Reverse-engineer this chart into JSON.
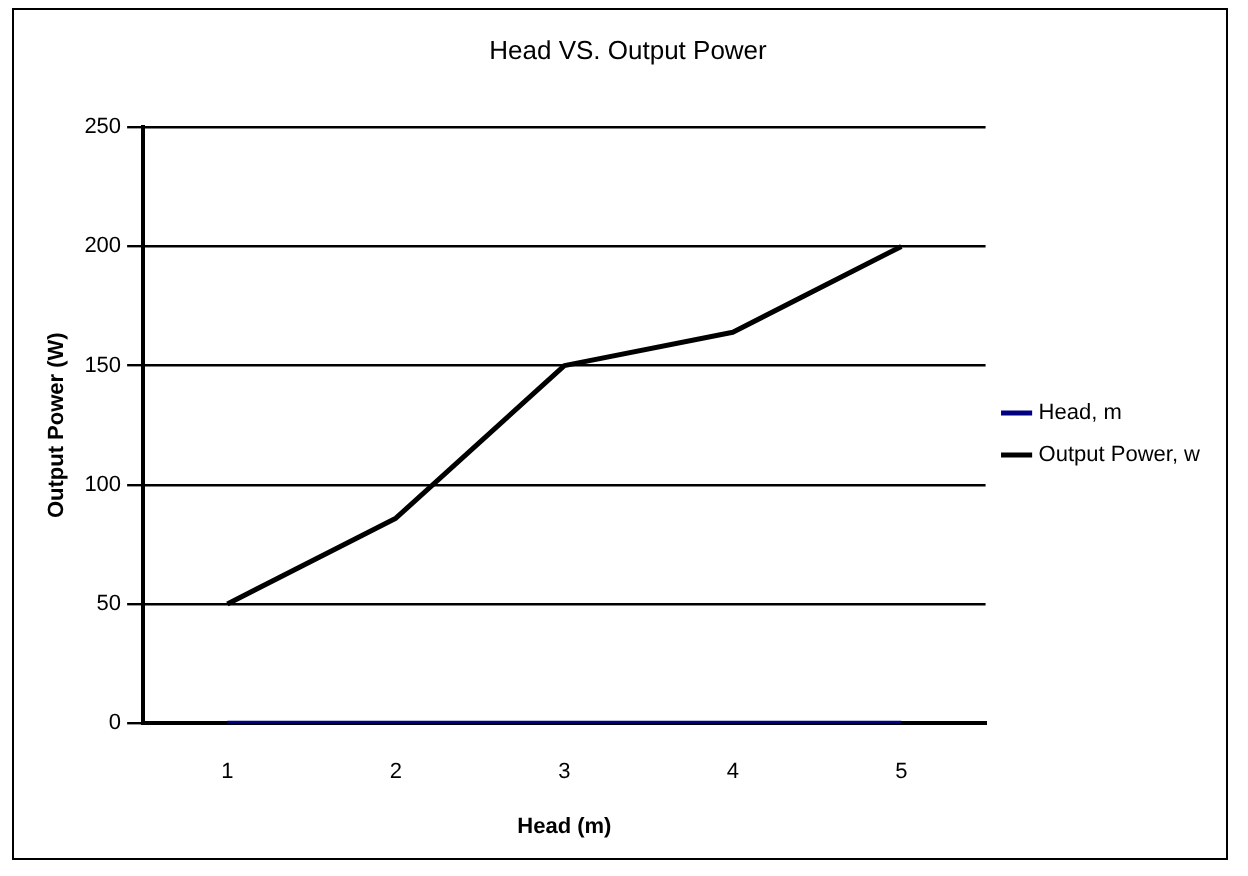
{
  "chart_data": {
    "type": "line",
    "title": "Head VS. Output Power",
    "xlabel": "Head (m)",
    "ylabel": "Output Power (W)",
    "categories": [
      "1",
      "2",
      "3",
      "4",
      "5"
    ],
    "series": [
      {
        "name": "Head, m",
        "color": "#000080",
        "values": [
          0,
          0,
          0,
          0,
          0
        ]
      },
      {
        "name": "Output Power, w",
        "color": "#000000",
        "values": [
          50,
          86,
          150,
          164,
          200
        ]
      }
    ],
    "ylim": [
      0,
      250
    ],
    "yticks": [
      0,
      50,
      100,
      150,
      200,
      250
    ],
    "grid": "y",
    "legend": "right",
    "marker": "none"
  }
}
